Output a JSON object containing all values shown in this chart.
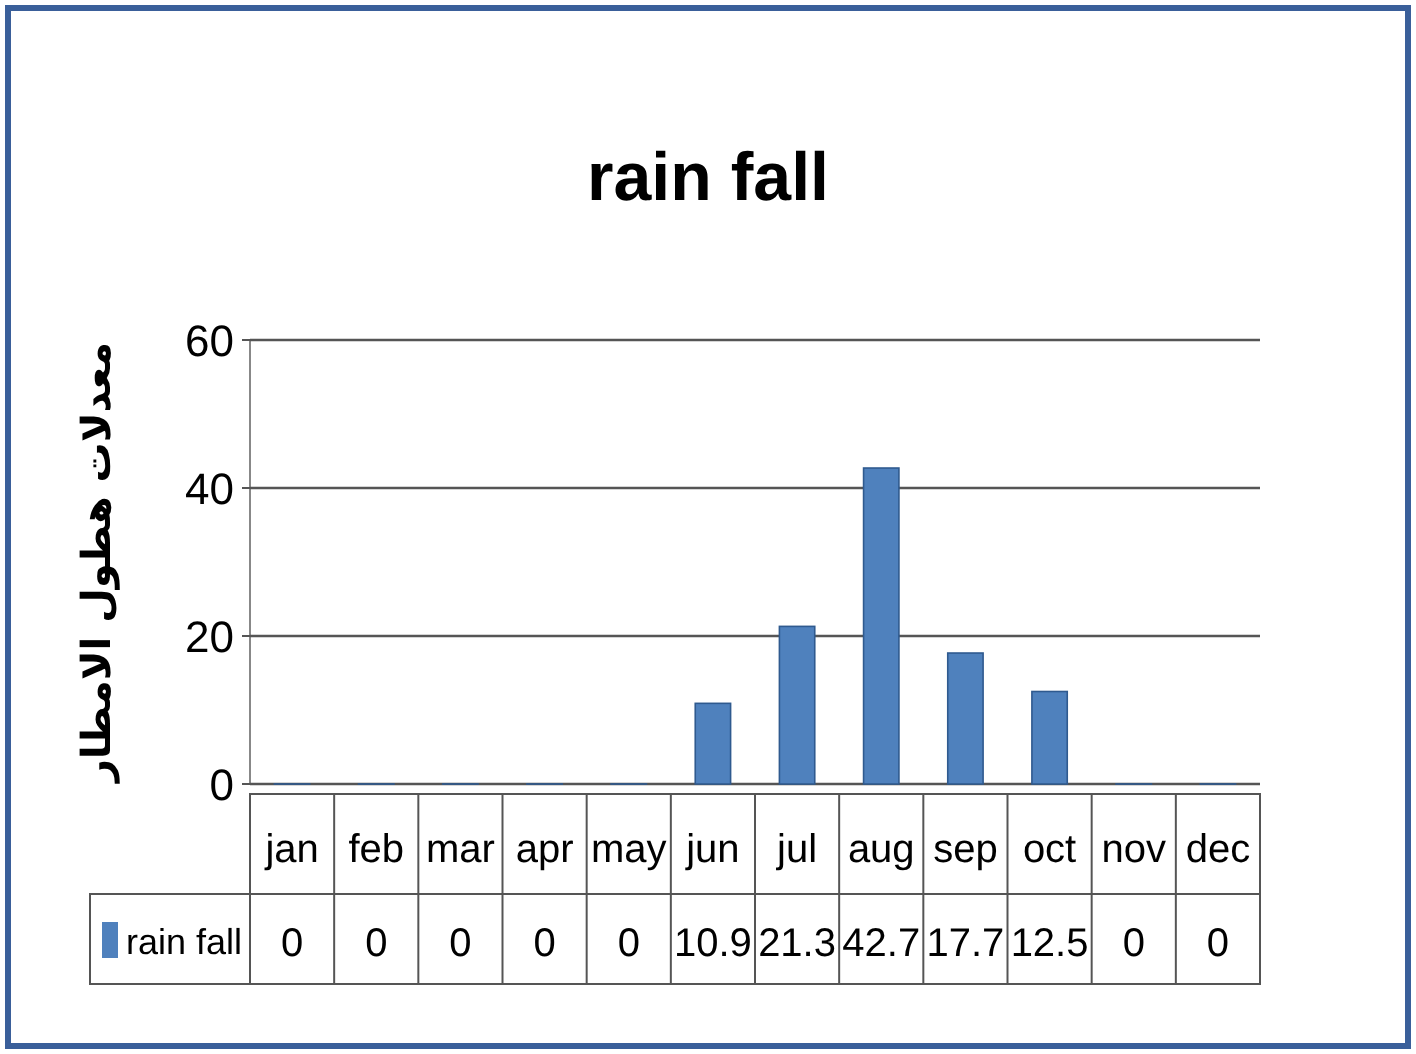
{
  "chart_data": {
    "type": "bar",
    "title": "rain fall",
    "ylabel": "معدلات هطول الامطار",
    "categories": [
      "jan",
      "feb",
      "mar",
      "apr",
      "may",
      "jun",
      "jul",
      "aug",
      "sep",
      "oct",
      "nov",
      "dec"
    ],
    "series": [
      {
        "name": "rain fall",
        "color": "#4f81bd",
        "values": [
          0,
          0,
          0,
          0,
          0,
          10.9,
          21.3,
          42.7,
          17.7,
          12.5,
          0,
          0
        ]
      }
    ],
    "ylim": [
      0,
      60
    ],
    "yticks": [
      0,
      20,
      40,
      60
    ],
    "grid": "y",
    "data_labels": true,
    "legend": "bottom"
  }
}
